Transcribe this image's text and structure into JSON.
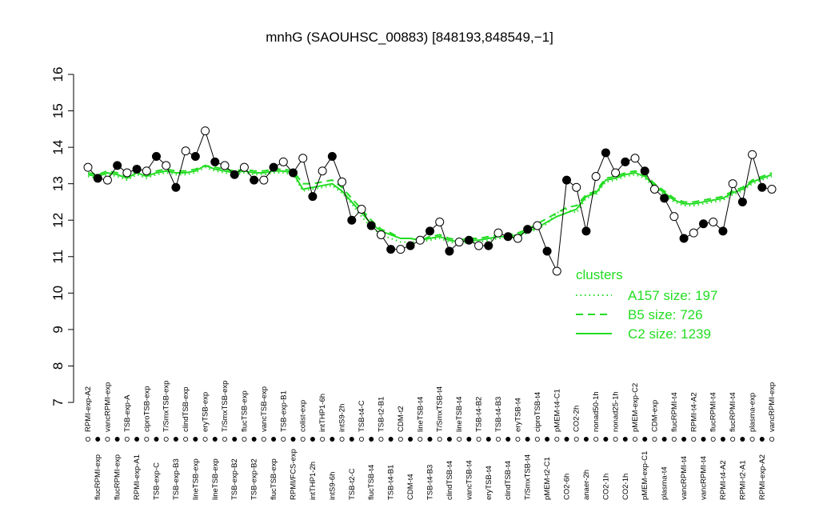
{
  "chart_data": {
    "type": "line",
    "title": "mnhG (SAOUHSC_00883) [848193,848549,−1]",
    "ylim": [
      7,
      16
    ],
    "yticks": [
      7,
      8,
      9,
      10,
      11,
      12,
      13,
      14,
      15,
      16
    ],
    "line_color": "#000000",
    "marker_colors": [
      "#ffffff",
      "#000000"
    ],
    "categories": [
      "RPMI-exp-A2",
      "flucRPMI-exp",
      "vancRPMI-exp",
      "flucRPMI-exp",
      "TSB-exp-A",
      "RPMI-exp-A1",
      "ciproTSB-exp",
      "TSB-exp-C",
      "T/SmxTSB-exp",
      "TSB-exp-B3",
      "clindTSB-exp",
      "lineTSB-exp",
      "eryTSB-exp",
      "lineTSB-exp",
      "T/SmxTSB-exp",
      "TSB-exp-B2",
      "flucTSB-exp",
      "TSB-exp-B2",
      "vancTSB-exp",
      "flucTSB-exp",
      "TSB-exp-B1",
      "RPMI/FCS-exp",
      "colist-exp",
      "intTHP1-2h",
      "intTHP1-6h",
      "intS9-6h",
      "intS9-2h",
      "TSB-t2-C",
      "TSB-t4-C",
      "flucTSB-t4",
      "TSB-t2-B1",
      "TSB-t4-B1",
      "CDM-t2",
      "CDM-t4",
      "lineTSB-t4",
      "TSB-t4-B3",
      "T/SmxTSB-t4",
      "clindTSB-t4",
      "lineTSB-t4",
      "vancTSB-t4",
      "TSB-t4-B2",
      "eryTSB-t4",
      "TSB-t4-B3",
      "clindTSB-t4",
      "eryTSB-t4",
      "T/SmxTSB-t4",
      "ciproTSB-t4",
      "pMEM-t2-C1",
      "pMEM-t4-C1",
      "CO2-6h",
      "CO2-2h",
      "anaer-2h",
      "nonad50-1h",
      "CO2-1h",
      "nonad25-1h",
      "CO2-1h",
      "pMEM-exp-C2",
      "pMEM-exp-C1",
      "CDM-exp",
      "plasma-t4",
      "flucRPMI-t4",
      "vancRPMI-t4",
      "RPMI-t4-A2",
      "vancRPMI-t4",
      "flucRPMI-t4",
      "RPMI-t4-A2",
      "flucRPMI-t4",
      "RPMI-t2-A1",
      "plasma-exp",
      "RPMI-exp-A2",
      "vancRPMI-exp"
    ],
    "values": [
      13.45,
      13.15,
      13.1,
      13.5,
      13.3,
      13.4,
      13.35,
      13.75,
      13.5,
      12.9,
      13.9,
      13.75,
      14.45,
      13.6,
      13.5,
      13.25,
      13.45,
      13.1,
      13.1,
      13.45,
      13.6,
      13.3,
      13.7,
      12.65,
      13.35,
      13.75,
      13.05,
      12.0,
      12.3,
      11.85,
      11.6,
      11.2,
      11.2,
      11.3,
      11.45,
      11.7,
      11.95,
      11.15,
      11.4,
      11.45,
      11.3,
      11.3,
      11.65,
      11.55,
      11.5,
      11.75,
      11.85,
      11.15,
      10.6,
      13.1,
      12.9,
      11.7,
      13.2,
      13.85,
      13.3,
      13.6,
      13.7,
      13.35,
      12.85,
      12.6,
      12.1,
      11.5,
      11.65,
      11.9,
      11.95,
      11.7,
      13.0,
      12.5,
      13.8,
      12.9,
      12.85
    ],
    "legend_title": "clusters",
    "legend_position": "right",
    "series": [
      {
        "name": "A157 size: 197",
        "color": "#22dd22",
        "style": "dotted",
        "values": [
          13.2,
          13.15,
          13.25,
          13.2,
          13.1,
          13.25,
          13.15,
          13.25,
          13.3,
          13.25,
          13.25,
          13.3,
          13.45,
          13.35,
          13.3,
          13.25,
          13.3,
          13.25,
          13.25,
          13.3,
          13.3,
          13.25,
          12.8,
          12.85,
          12.9,
          12.95,
          12.75,
          12.45,
          12.1,
          11.8,
          11.6,
          11.5,
          11.4,
          11.4,
          11.4,
          11.45,
          11.5,
          11.4,
          11.35,
          11.4,
          11.4,
          11.45,
          11.5,
          11.5,
          11.55,
          11.65,
          11.75,
          11.9,
          12.2,
          12.3,
          12.2,
          12.6,
          12.7,
          13.05,
          13.1,
          13.2,
          13.25,
          13.15,
          12.9,
          12.7,
          12.5,
          12.4,
          12.4,
          12.45,
          12.5,
          12.55,
          12.7,
          12.8,
          13.0,
          13.1,
          13.2
        ]
      },
      {
        "name": "B5 size: 726",
        "color": "#22dd22",
        "style": "dashed",
        "values": [
          13.3,
          13.25,
          13.35,
          13.3,
          13.2,
          13.35,
          13.25,
          13.35,
          13.4,
          13.35,
          13.35,
          13.4,
          13.5,
          13.45,
          13.4,
          13.35,
          13.4,
          13.35,
          13.35,
          13.4,
          13.4,
          13.35,
          13.0,
          13.0,
          13.05,
          13.1,
          12.9,
          12.6,
          12.3,
          12.0,
          11.75,
          11.65,
          11.5,
          11.5,
          11.45,
          11.55,
          11.6,
          11.5,
          11.45,
          11.5,
          11.5,
          11.55,
          11.6,
          11.6,
          11.65,
          11.75,
          11.9,
          12.05,
          12.2,
          12.35,
          12.4,
          12.7,
          12.8,
          13.15,
          13.2,
          13.3,
          13.35,
          13.25,
          13.0,
          12.8,
          12.6,
          12.5,
          12.5,
          12.55,
          12.6,
          12.65,
          12.8,
          12.9,
          13.1,
          13.2,
          13.3
        ]
      },
      {
        "name": "C2 size: 1239",
        "color": "#22dd22",
        "style": "solid",
        "values": [
          13.25,
          13.2,
          13.3,
          13.25,
          13.15,
          13.3,
          13.2,
          13.3,
          13.35,
          13.3,
          13.3,
          13.35,
          13.5,
          13.4,
          13.35,
          13.3,
          13.35,
          13.3,
          13.3,
          13.35,
          13.35,
          13.3,
          12.85,
          12.9,
          12.95,
          13.0,
          12.8,
          12.5,
          12.2,
          11.9,
          11.7,
          11.6,
          11.5,
          11.5,
          11.45,
          11.5,
          11.55,
          11.45,
          11.4,
          11.45,
          11.45,
          11.5,
          11.55,
          11.55,
          11.6,
          11.7,
          11.8,
          11.95,
          12.1,
          12.2,
          12.3,
          12.65,
          12.75,
          13.1,
          13.15,
          13.25,
          13.3,
          13.2,
          12.95,
          12.75,
          12.55,
          12.45,
          12.45,
          12.5,
          12.55,
          12.6,
          12.75,
          12.85,
          13.05,
          13.15,
          13.25
        ]
      }
    ]
  }
}
